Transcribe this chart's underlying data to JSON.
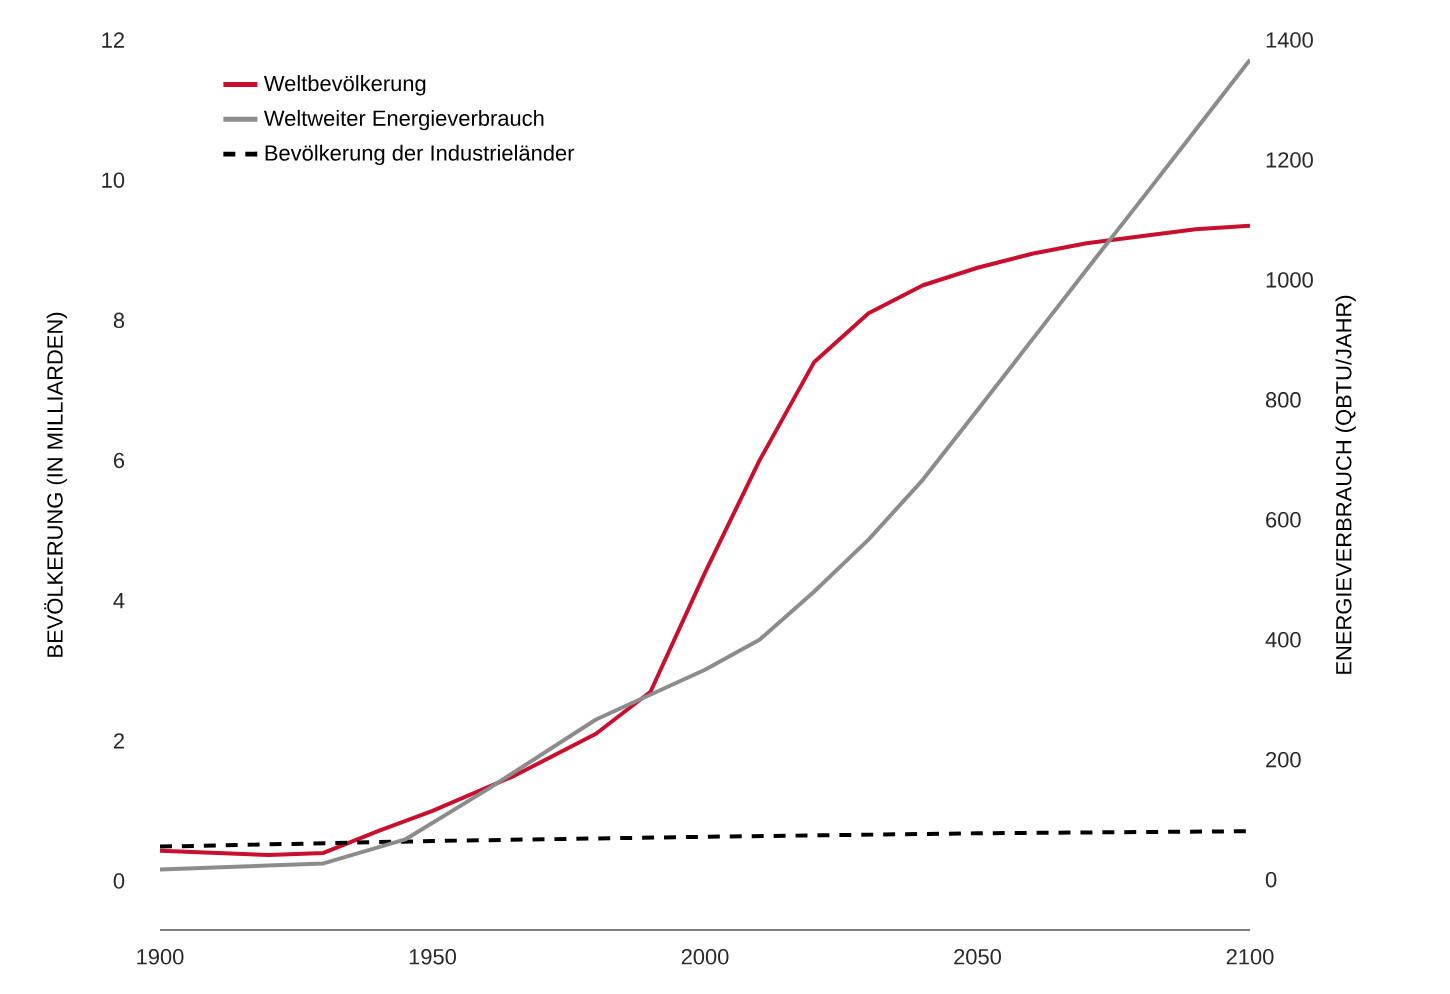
{
  "chart_data": {
    "type": "line",
    "xlabel": null,
    "ylabel": "BEVÖLKERUNG (IN MILLIARDEN)",
    "y2label": "ENERGIEVERBRAUCH (QBTU/JAHR)",
    "xlim": [
      1900,
      2100
    ],
    "xticks": [
      1900,
      1950,
      2000,
      2050,
      2100
    ],
    "ylim": [
      -0.7,
      12
    ],
    "yticks": [
      0,
      2,
      4,
      6,
      8,
      10,
      12
    ],
    "y2lim": [
      -84,
      1400
    ],
    "y2ticks": [
      0,
      200,
      400,
      600,
      800,
      1000,
      1200,
      1400
    ],
    "legend": "top left",
    "grid": false,
    "series": [
      {
        "name": "Weltbevölkerung",
        "color": "#c8102e",
        "line_style": "solid",
        "x": [
          1900,
          1920,
          1930,
          1940,
          1950,
          1965,
          1980,
          1990,
          2000,
          2010,
          2020,
          2030,
          2040,
          2050,
          2060,
          2070,
          2080,
          2090,
          2100
        ],
        "values": [
          0.43,
          0.37,
          0.4,
          0.71,
          1.0,
          1.5,
          2.1,
          2.7,
          4.4,
          6.0,
          7.4,
          8.1,
          8.5,
          8.75,
          8.95,
          9.1,
          9.2,
          9.3,
          9.35
        ]
      },
      {
        "name": "Weltweiter Energieverbrauch",
        "color": "#8c8c8c",
        "line_style": "solid",
        "axis": "y2",
        "x": [
          1900,
          1930,
          1945,
          1960,
          1980,
          2000,
          2010,
          2020,
          2030,
          2040,
          2050,
          2060,
          2070,
          2080,
          2090,
          2100
        ],
        "values": [
          17,
          27,
          67,
          150,
          267,
          350,
          400,
          480,
          567,
          667,
          783,
          900,
          1017,
          1133,
          1250,
          1367
        ]
      },
      {
        "name": "Bevölkerung der Industrieländer",
        "color": "#000000",
        "line_style": "dashed",
        "x": [
          1900,
          1950,
          2000,
          2050,
          2100
        ],
        "values": [
          0.49,
          0.57,
          0.63,
          0.68,
          0.71
        ]
      }
    ]
  }
}
